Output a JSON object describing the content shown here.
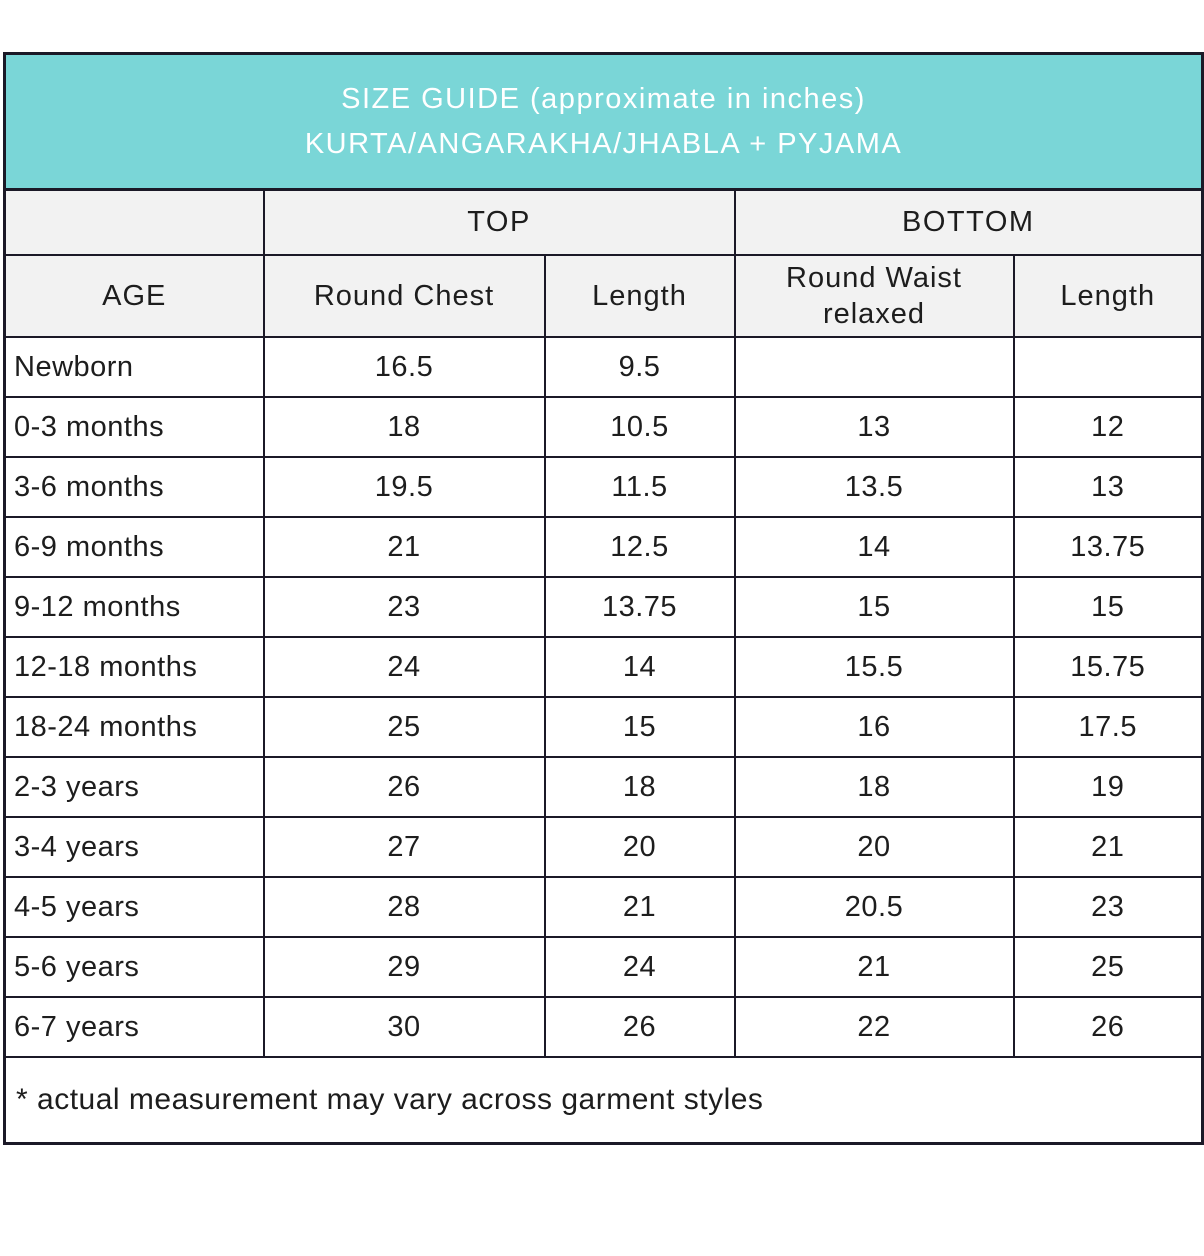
{
  "chart_data": {
    "type": "table",
    "title": "SIZE GUIDE (approximate in inches)",
    "subtitle": "KURTA/ANGARAKHA/JHABLA + PYJAMA",
    "group_headers": {
      "top": "TOP",
      "bottom": "BOTTOM"
    },
    "columns": [
      "AGE",
      "Round Chest",
      "Length",
      "Round Waist relaxed",
      "Length"
    ],
    "rows": [
      [
        "Newborn",
        "16.5",
        "9.5",
        "",
        ""
      ],
      [
        "0-3 months",
        "18",
        "10.5",
        "13",
        "12"
      ],
      [
        "3-6 months",
        "19.5",
        "11.5",
        "13.5",
        "13"
      ],
      [
        "6-9 months",
        "21",
        "12.5",
        "14",
        "13.75"
      ],
      [
        "9-12 months",
        "23",
        "13.75",
        "15",
        "15"
      ],
      [
        "12-18 months",
        "24",
        "14",
        "15.5",
        "15.75"
      ],
      [
        "18-24 months",
        "25",
        "15",
        "16",
        "17.5"
      ],
      [
        "2-3 years",
        "26",
        "18",
        "18",
        "19"
      ],
      [
        "3-4 years",
        "27",
        "20",
        "20",
        "21"
      ],
      [
        "4-5 years",
        "28",
        "21",
        "20.5",
        "23"
      ],
      [
        "5-6 years",
        "29",
        "24",
        "21",
        "25"
      ],
      [
        "6-7 years",
        "30",
        "26",
        "22",
        "26"
      ]
    ],
    "footnote": "* actual measurement may vary across garment styles"
  },
  "colors": {
    "banner_bg": "#7ad6d7",
    "banner_text": "#ffffff",
    "header_bg": "#f2f2f2",
    "border_color": "#1b1927",
    "text_color": "#1d1d1d"
  }
}
